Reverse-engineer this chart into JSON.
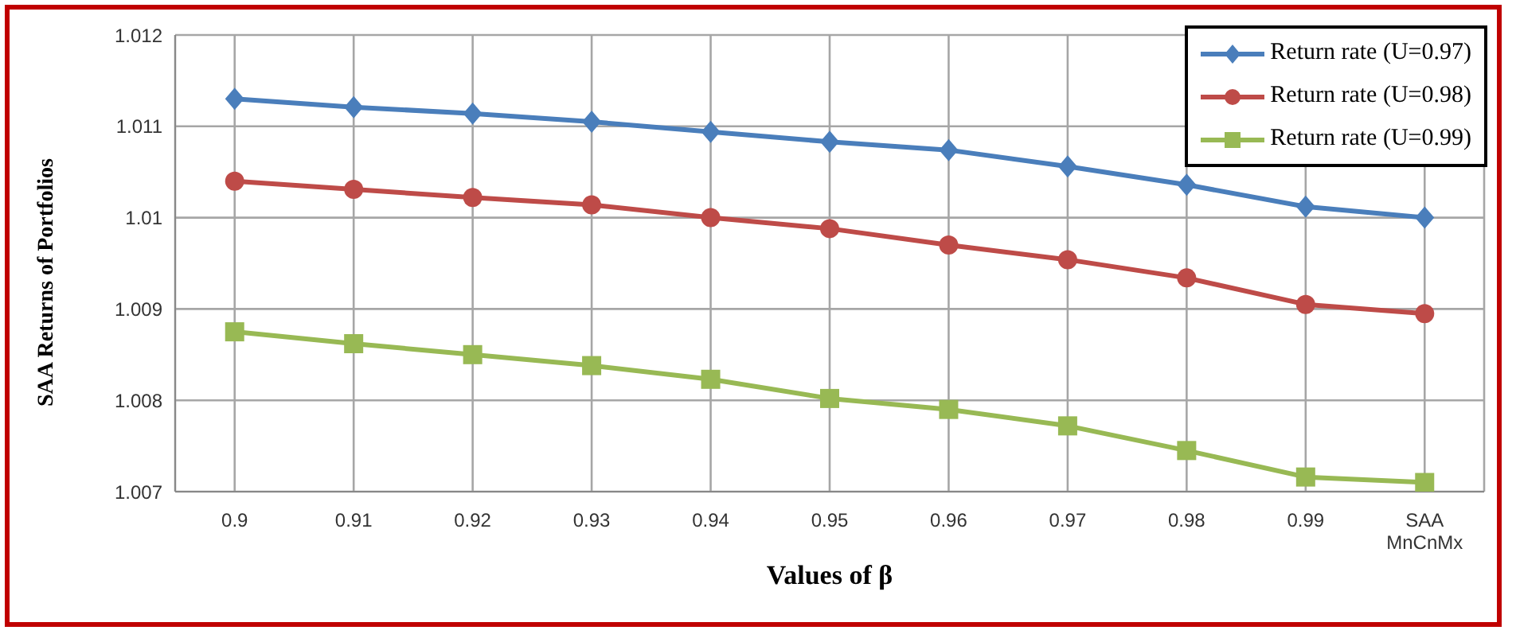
{
  "chart_data": {
    "type": "line",
    "xlabel": "Values of β",
    "ylabel": "SAA Returns of Portfolios",
    "categories": [
      "0.9",
      "0.91",
      "0.92",
      "0.93",
      "0.94",
      "0.95",
      "0.96",
      "0.97",
      "0.98",
      "0.99",
      "SAA MnCnMx"
    ],
    "series": [
      {
        "name": "Return rate (U=0.97)",
        "color": "#4a7ebb",
        "marker": "diamond",
        "values": [
          1.0113,
          1.01121,
          1.01114,
          1.01105,
          1.01094,
          1.01083,
          1.01074,
          1.01056,
          1.01036,
          1.01012,
          1.01
        ]
      },
      {
        "name": "Return rate (U=0.98)",
        "color": "#be4b48",
        "marker": "circle",
        "values": [
          1.0104,
          1.01031,
          1.01022,
          1.01014,
          1.01,
          1.00988,
          1.0097,
          1.00954,
          1.00934,
          1.00905,
          1.00895
        ]
      },
      {
        "name": "Return rate (U=0.99)",
        "color": "#98b954",
        "marker": "square",
        "values": [
          1.00875,
          1.00862,
          1.0085,
          1.00838,
          1.00823,
          1.00802,
          1.0079,
          1.00772,
          1.00745,
          1.00716,
          1.0071
        ]
      }
    ],
    "ylim": [
      1.007,
      1.012
    ],
    "yticks": [
      1.007,
      1.008,
      1.009,
      1.01,
      1.011,
      1.012
    ],
    "grid": true,
    "legend": "top right",
    "line_style": "solid"
  }
}
